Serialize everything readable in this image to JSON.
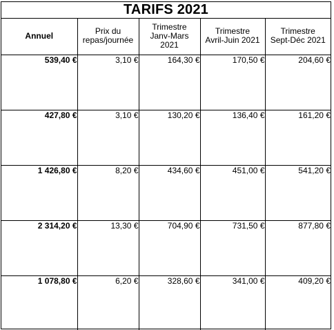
{
  "title": "TARIFS 2021",
  "columns": [
    {
      "lines": [
        "Annuel"
      ]
    },
    {
      "lines": [
        "Prix du",
        "repas/journée"
      ]
    },
    {
      "lines": [
        "Trimestre",
        "Janv-Mars",
        "2021"
      ]
    },
    {
      "lines": [
        "Trimestre",
        "Avril-Juin 2021"
      ]
    },
    {
      "lines": [
        "Trimestre",
        "Sept-Déc  2021"
      ]
    }
  ],
  "rows": [
    [
      "539,40 €",
      "3,10 €",
      "164,30 €",
      "170,50 €",
      "204,60 €"
    ],
    [
      "427,80 €",
      "3,10 €",
      "130,20 €",
      "136,40 €",
      "161,20 €"
    ],
    [
      "1 426,80 €",
      "8,20 €",
      "434,60 €",
      "451,00 €",
      "541,20 €"
    ],
    [
      "2 314,20 €",
      "13,30 €",
      "704,90 €",
      "731,50 €",
      "877,80 €"
    ],
    [
      "1 078,80 €",
      "6,20 €",
      "328,60 €",
      "341,00 €",
      "409,20 €"
    ]
  ]
}
